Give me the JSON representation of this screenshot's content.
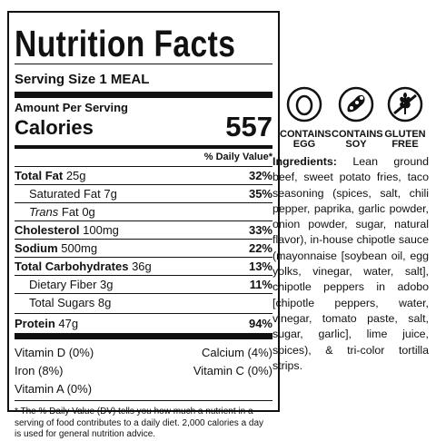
{
  "label": {
    "title": "Nutrition Facts",
    "serving_size": "Serving Size 1 MEAL",
    "amount_per_serving": "Amount Per Serving",
    "calories_label": "Calories",
    "calories": 557,
    "daily_value_header": "% Daily Value*",
    "rows": [
      {
        "name": "Total Fat",
        "amount": "25g",
        "dv": "32%"
      },
      {
        "name": "Saturated Fat",
        "amount": "7g",
        "dv": "35%"
      },
      {
        "prefix": "Trans",
        "name": "Fat",
        "amount": "0g"
      },
      {
        "name": "Cholesterol",
        "amount": "100mg",
        "dv": "33%"
      },
      {
        "name": "Sodium",
        "amount": "500mg",
        "dv": "22%"
      },
      {
        "name": "Total Carbohydrates",
        "amount": "36g",
        "dv": "13%"
      },
      {
        "name": "Dietary Fiber",
        "amount": "3g",
        "dv": "11%"
      },
      {
        "name": "Total Sugars",
        "amount": "8g"
      },
      {
        "name": "Protein",
        "amount": "47g",
        "dv": "94%"
      }
    ],
    "vitamins": [
      [
        "Vitamin D (0%)",
        "Calcium (4%)"
      ],
      [
        "Iron (8%)",
        "Vitamin C (0%)"
      ],
      [
        "Vitamin A (0%)"
      ]
    ],
    "footnote": "* The % Daily Value (DV) tells you how much a nutrient in a serving of food contributes to a daily diet. 2,000 calories a day is used for general nutrition advice."
  },
  "badges": [
    "CONTAINS EGG",
    "CONTAINS SOY",
    "GLUTEN FREE"
  ],
  "ingredients": {
    "label": "Ingredients:",
    "text": "Lean ground beef, sweet potato fries, taco seasoning (spices, salt, chili pepper, paprika, garlic powder, onion powder, sugar, natural flavor), in-house chipotle sauce (mayonnaise [soybean oil, egg yolks, vinegar, water, salt], chipotle peppers in adobo [chipotle peppers, water, vinegar, tomato paste, salt, sugar, garlic], lime juice, spices), & tri-color tortilla strips."
  }
}
